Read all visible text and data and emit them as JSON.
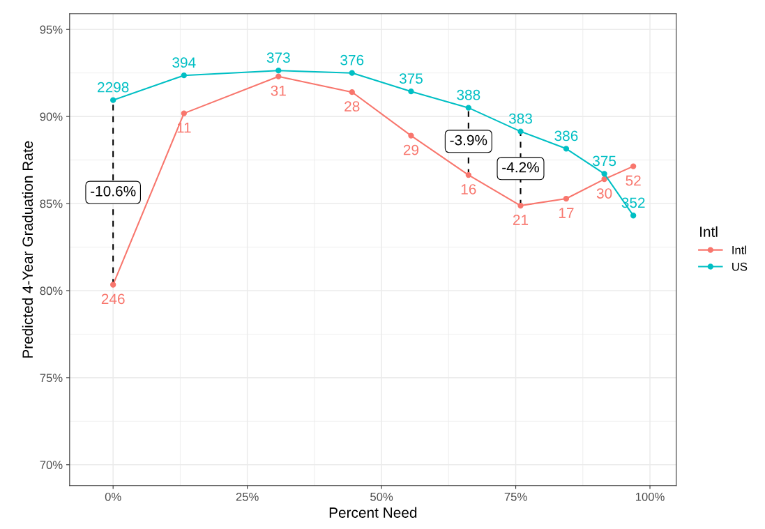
{
  "chart_data": {
    "type": "line",
    "xlabel": "Percent Need",
    "ylabel": "Predicted 4-Year Graduation Rate",
    "legend_title": "Intl",
    "legend": "right",
    "grid": true,
    "marker": "circle",
    "line_style": "solid",
    "xlim": [
      -8.1,
      104.9
    ],
    "ylim": [
      68.8,
      95.9
    ],
    "xticks": [
      {
        "value": 0,
        "label": "0%"
      },
      {
        "value": 25,
        "label": "25%"
      },
      {
        "value": 50,
        "label": "50%"
      },
      {
        "value": 75,
        "label": "75%"
      },
      {
        "value": 100,
        "label": "100%"
      }
    ],
    "yticks": [
      {
        "value": 70,
        "label": "70%"
      },
      {
        "value": 75,
        "label": "75%"
      },
      {
        "value": 80,
        "label": "80%"
      },
      {
        "value": 85,
        "label": "85%"
      },
      {
        "value": 90,
        "label": "90%"
      },
      {
        "value": 95,
        "label": "95%"
      }
    ],
    "series": [
      {
        "name": "Intl",
        "color": "#f8766d",
        "x": [
          0,
          13.2,
          30.8,
          44.5,
          55.5,
          66.2,
          75.9,
          84.4,
          91.5,
          96.9
        ],
        "values": [
          80.34,
          90.18,
          92.3,
          91.4,
          88.9,
          86.64,
          84.88,
          85.28,
          86.4,
          87.14
        ]
      },
      {
        "name": "US",
        "color": "#00bfc4",
        "x": [
          0,
          13.2,
          30.8,
          44.5,
          55.5,
          66.2,
          75.9,
          84.4,
          91.5,
          96.9
        ],
        "values": [
          90.94,
          92.36,
          92.64,
          92.5,
          91.44,
          90.5,
          89.14,
          88.15,
          86.71,
          84.31
        ]
      },
      {
        "color": "#000000",
        "marker": "none",
        "line_style": "dashed",
        "x": [
          0,
          0
        ],
        "values": [
          80.34,
          90.94
        ]
      },
      {
        "color": "#000000",
        "marker": "none",
        "line_style": "dashed",
        "x": [
          66.2,
          66.2
        ],
        "values": [
          86.64,
          90.5
        ]
      },
      {
        "color": "#000000",
        "marker": "none",
        "line_style": "dashed",
        "x": [
          75.9,
          75.9
        ],
        "values": [
          84.88,
          89.14
        ]
      }
    ],
    "annotations": [
      {
        "text": "246",
        "x": 0,
        "y": 80.34
      },
      {
        "text": "11",
        "x": 13.2,
        "y": 90.18
      },
      {
        "text": "31",
        "x": 30.8,
        "y": 92.3
      },
      {
        "text": "28",
        "x": 44.5,
        "y": 91.4
      },
      {
        "text": "29",
        "x": 55.5,
        "y": 88.9
      },
      {
        "text": "16",
        "x": 66.2,
        "y": 86.64
      },
      {
        "text": "21",
        "x": 75.9,
        "y": 84.88
      },
      {
        "text": "17",
        "x": 84.4,
        "y": 85.28
      },
      {
        "text": "30",
        "x": 91.5,
        "y": 86.4
      },
      {
        "text": "52",
        "x": 96.9,
        "y": 87.14
      },
      {
        "text": "2298",
        "x": 0,
        "y": 90.94
      },
      {
        "text": "394",
        "x": 13.2,
        "y": 92.36
      },
      {
        "text": "373",
        "x": 30.8,
        "y": 92.64
      },
      {
        "text": "376",
        "x": 44.5,
        "y": 92.5
      },
      {
        "text": "375",
        "x": 55.5,
        "y": 91.44
      },
      {
        "text": "388",
        "x": 66.2,
        "y": 90.5
      },
      {
        "text": "383",
        "x": 75.9,
        "y": 89.14
      },
      {
        "text": "386",
        "x": 84.4,
        "y": 88.15
      },
      {
        "text": "375",
        "x": 91.5,
        "y": 86.71
      },
      {
        "text": "352",
        "x": 96.9,
        "y": 84.31
      },
      "-10.6%",
      "-3.9%",
      "-4.2%"
    ]
  }
}
